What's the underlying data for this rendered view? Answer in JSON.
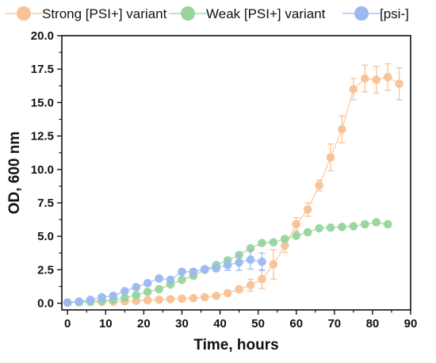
{
  "chart_data": {
    "type": "scatter",
    "title": "",
    "xlabel": "Time, hours",
    "ylabel": "OD, 600 nm",
    "xlim": [
      -1.5,
      90
    ],
    "ylim": [
      -0.5,
      20
    ],
    "x_ticks": [
      0,
      10,
      20,
      30,
      40,
      50,
      60,
      70,
      80,
      90
    ],
    "x_tick_labels": [
      "0",
      "10",
      "20",
      "30",
      "40",
      "50",
      "60",
      "70",
      "80",
      "90"
    ],
    "y_ticks": [
      0,
      2.5,
      5,
      7.5,
      10,
      12.5,
      15,
      17.5,
      20
    ],
    "y_tick_labels": [
      "0.0",
      "2.5",
      "5.0",
      "7.5",
      "10.0",
      "12.5",
      "15.0",
      "17.5",
      "20.0"
    ],
    "grid": false,
    "legend": "top",
    "series": [
      {
        "name": "Strong [PSI+] variant",
        "color": "#F7C296",
        "x": [
          0,
          3,
          6,
          9,
          12,
          15,
          18,
          21,
          24,
          27,
          30,
          33,
          36,
          39,
          42,
          45,
          48,
          51,
          54,
          57,
          60,
          63,
          66,
          69,
          72,
          75,
          78,
          81,
          84,
          87
        ],
        "y": [
          0.05,
          0.07,
          0.09,
          0.1,
          0.12,
          0.15,
          0.18,
          0.22,
          0.26,
          0.3,
          0.34,
          0.38,
          0.45,
          0.55,
          0.75,
          1.05,
          1.35,
          1.8,
          2.9,
          4.3,
          5.9,
          7.0,
          8.8,
          10.9,
          13.0,
          16.0,
          16.8,
          16.7,
          16.9,
          16.4
        ],
        "err": [
          0.03,
          0.03,
          0.03,
          0.03,
          0.04,
          0.04,
          0.05,
          0.05,
          0.05,
          0.06,
          0.06,
          0.07,
          0.08,
          0.1,
          0.12,
          0.2,
          0.45,
          0.7,
          1.1,
          0.5,
          0.5,
          0.5,
          0.4,
          1.0,
          1.0,
          0.8,
          1.0,
          1.0,
          1.0,
          1.2
        ]
      },
      {
        "name": "Weak [PSI+] variant",
        "color": "#96D59B",
        "x": [
          0,
          3,
          6,
          9,
          12,
          15,
          18,
          21,
          24,
          27,
          30,
          33,
          36,
          39,
          42,
          45,
          48,
          51,
          54,
          57,
          60,
          63,
          66,
          69,
          72,
          75,
          78,
          81,
          84
        ],
        "y": [
          0.05,
          0.08,
          0.12,
          0.18,
          0.25,
          0.4,
          0.6,
          0.85,
          1.05,
          1.4,
          1.75,
          2.05,
          2.5,
          2.85,
          3.2,
          3.6,
          4.1,
          4.5,
          4.55,
          4.8,
          5.05,
          5.3,
          5.6,
          5.65,
          5.7,
          5.75,
          5.9,
          6.05,
          5.9
        ]
      },
      {
        "name": "[psi-]",
        "color": "#9CB8F0",
        "x": [
          0,
          3,
          6,
          9,
          12,
          15,
          18,
          21,
          24,
          27,
          30,
          33,
          36,
          39,
          42,
          45,
          48,
          51
        ],
        "y": [
          0.05,
          0.12,
          0.25,
          0.45,
          0.55,
          0.9,
          1.2,
          1.5,
          1.85,
          1.75,
          2.35,
          2.35,
          2.55,
          2.6,
          2.85,
          3.05,
          3.25,
          3.1
        ],
        "err": [
          0.03,
          0.04,
          0.05,
          0.07,
          0.1,
          0.1,
          0.12,
          0.12,
          0.14,
          0.14,
          0.16,
          0.16,
          0.2,
          0.22,
          0.4,
          0.6,
          0.7,
          0.65
        ]
      }
    ]
  }
}
